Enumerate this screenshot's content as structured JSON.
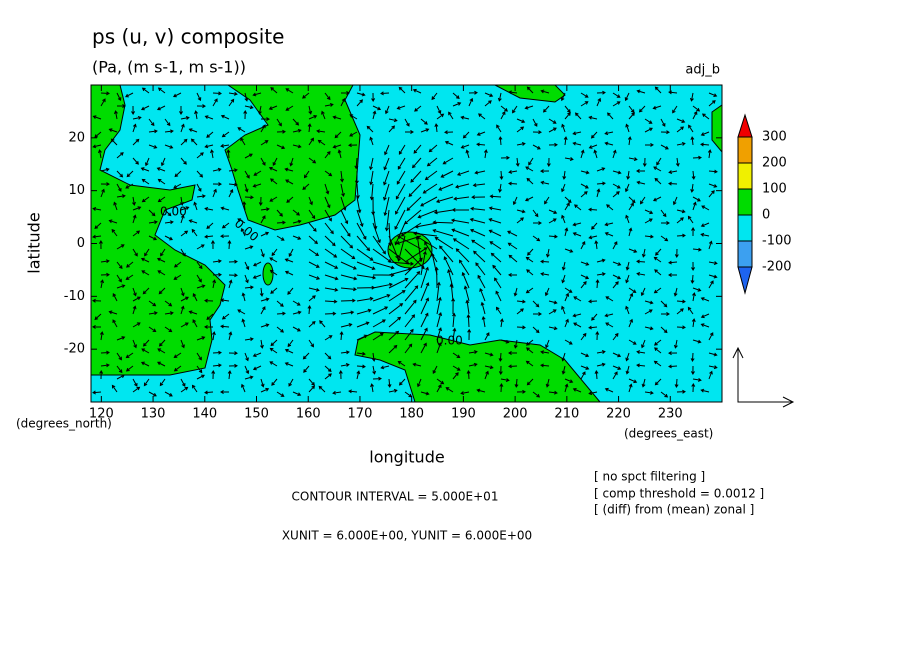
{
  "chart_data": {
    "type": "contour_vector",
    "title": "ps (u, v) composite",
    "subtitle": "(Pa, (m s-1, m s-1))",
    "label_right": "adj_b",
    "x_label": "longitude",
    "y_label": "latitude",
    "x_unit": "(degrees_east)",
    "y_unit": "(degrees_north)",
    "xlim": [
      118,
      240
    ],
    "ylim": [
      -30,
      30
    ],
    "xticks": [
      120,
      130,
      140,
      150,
      160,
      170,
      180,
      190,
      200,
      210,
      220,
      230
    ],
    "yticks": [
      -20,
      -10,
      0,
      10,
      20
    ],
    "contour_labels": [
      "0.00",
      "0.00",
      "0.00"
    ],
    "colorbar": {
      "levels": [
        -200,
        -100,
        0,
        100,
        200,
        300
      ],
      "colors": [
        "#1e64f0",
        "#3ca0f0",
        "#00e6f0",
        "#00dc00",
        "#f0f000",
        "#f0a000",
        "#f00000"
      ]
    },
    "notes": [
      "CONTOUR INTERVAL = 5.000E+01",
      "XUNIT = 6.000E+00, YUNIT = 6.000E+00"
    ],
    "info": [
      "[ no spct filtering ]",
      "[ comp threshold = 0.0012 ]",
      "[ (diff) from (mean) zonal ]"
    ]
  }
}
